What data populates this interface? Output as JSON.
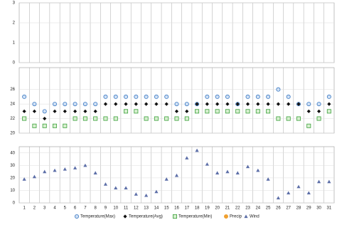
{
  "chart_data": {
    "type": "scatter",
    "categories": [
      "1",
      "2",
      "3",
      "4",
      "5",
      "6",
      "7",
      "8",
      "9",
      "10",
      "11",
      "12",
      "13",
      "14",
      "15",
      "16",
      "17",
      "18",
      "19",
      "20",
      "21",
      "22",
      "23",
      "24",
      "25",
      "26",
      "27",
      "28",
      "29",
      "30",
      "31"
    ],
    "grid": true,
    "panels": [
      {
        "ylim": [
          0,
          3
        ],
        "yticks": [
          0,
          1,
          2,
          3
        ],
        "series": [
          {
            "name": "Precip",
            "color": "#f0a030",
            "marker": "circle",
            "values": [
              null,
              null,
              null,
              null,
              null,
              null,
              null,
              null,
              null,
              null,
              null,
              null,
              null,
              null,
              null,
              null,
              null,
              null,
              null,
              null,
              null,
              null,
              null,
              null,
              null,
              null,
              null,
              null,
              null,
              null,
              null
            ]
          }
        ]
      },
      {
        "ylim": [
          20,
          29
        ],
        "yticks": [
          20,
          22,
          24,
          26
        ],
        "series": [
          {
            "name": "Temperature(Max)",
            "color": "#3a78c2",
            "marker": "circle",
            "values": [
              25,
              24,
              23,
              24,
              24,
              24,
              24,
              24,
              25,
              25,
              25,
              25,
              25,
              25,
              25,
              24,
              24,
              24,
              25,
              25,
              25,
              24,
              25,
              25,
              25,
              26,
              25,
              24,
              24,
              24,
              25
            ]
          },
          {
            "name": "Temperature(Avg)",
            "color": "#111111",
            "marker": "diamond",
            "values": [
              23,
              23,
              22,
              23,
              23,
              23,
              23,
              23,
              24,
              24,
              24,
              24,
              24,
              24,
              24,
              23,
              23,
              24,
              24,
              24,
              24,
              24,
              24,
              24,
              24,
              24,
              24,
              24,
              23,
              23,
              24
            ]
          },
          {
            "name": "Temperature(Min)",
            "color": "#3aa03a",
            "marker": "square",
            "values": [
              22,
              21,
              21,
              21,
              21,
              22,
              22,
              22,
              22,
              22,
              23,
              23,
              22,
              22,
              22,
              22,
              22,
              23,
              23,
              23,
              23,
              23,
              23,
              23,
              23,
              22,
              22,
              22,
              21,
              22,
              23
            ]
          }
        ]
      },
      {
        "ylim": [
          0,
          45
        ],
        "yticks": [
          0,
          10,
          20,
          30,
          40
        ],
        "series": [
          {
            "name": "Wind",
            "color": "#5d6fa8",
            "marker": "triangle",
            "values": [
              19,
              21,
              25,
              26,
              27,
              28,
              30,
              24,
              15,
              12,
              12,
              7,
              6,
              9,
              19,
              22,
              36,
              42,
              31,
              24,
              25,
              24,
              29,
              26,
              19,
              4,
              8,
              13,
              8,
              17,
              17
            ]
          }
        ]
      }
    ]
  }
}
